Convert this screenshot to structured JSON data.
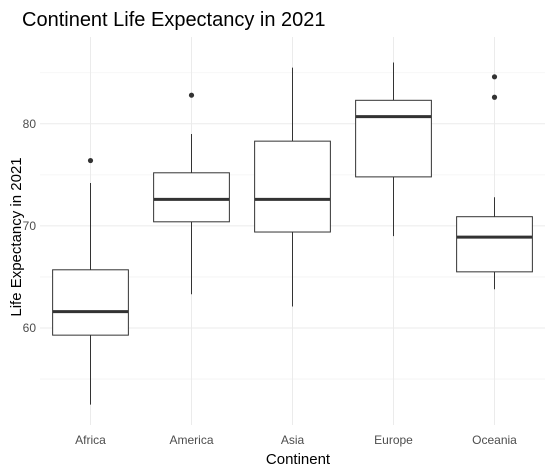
{
  "chart_data": {
    "type": "boxplot",
    "title": "Continent Life Expectancy in 2021",
    "xlabel": "Continent",
    "ylabel": "Life Expectancy in 2021",
    "ylim": [
      50.5,
      88.5
    ],
    "yticks": [
      60,
      70,
      80
    ],
    "grid": true,
    "categories": [
      "Africa",
      "America",
      "Asia",
      "Europe",
      "Oceania"
    ],
    "boxes": [
      {
        "category": "Africa",
        "min": 52.5,
        "q1": 59.3,
        "median": 61.6,
        "q3": 65.7,
        "max": 74.2,
        "outliers": [
          76.4
        ]
      },
      {
        "category": "America",
        "min": 63.3,
        "q1": 70.4,
        "median": 72.6,
        "q3": 75.2,
        "max": 79.0,
        "outliers": [
          82.8
        ]
      },
      {
        "category": "Asia",
        "min": 62.1,
        "q1": 69.4,
        "median": 72.6,
        "q3": 78.3,
        "max": 85.5,
        "outliers": []
      },
      {
        "category": "Europe",
        "min": 69.0,
        "q1": 74.8,
        "median": 80.7,
        "q3": 82.3,
        "max": 86.0,
        "outliers": []
      },
      {
        "category": "Oceania",
        "min": 63.8,
        "q1": 65.5,
        "median": 68.9,
        "q3": 70.9,
        "max": 72.8,
        "outliers": [
          82.6,
          84.6
        ]
      }
    ]
  }
}
